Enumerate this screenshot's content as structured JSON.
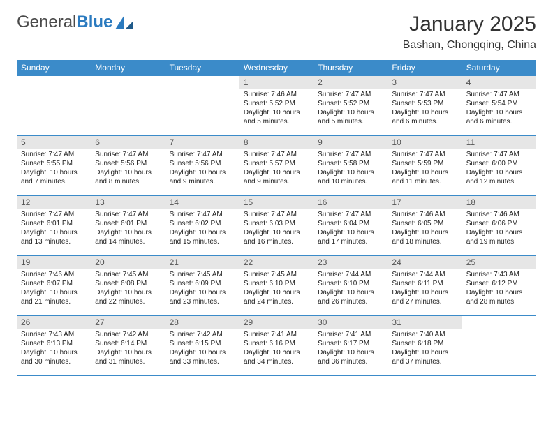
{
  "logo": {
    "text1": "General",
    "text2": "Blue"
  },
  "title": "January 2025",
  "location": "Bashan, Chongqing, China",
  "header_bg": "#3b8bc9",
  "daynum_bg": "#e6e6e6",
  "weekdays": [
    "Sunday",
    "Monday",
    "Tuesday",
    "Wednesday",
    "Thursday",
    "Friday",
    "Saturday"
  ],
  "weeks": [
    [
      {
        "empty": true
      },
      {
        "empty": true
      },
      {
        "empty": true
      },
      {
        "day": "1",
        "sunrise": "7:46 AM",
        "sunset": "5:52 PM",
        "daylight": "10 hours and 5 minutes."
      },
      {
        "day": "2",
        "sunrise": "7:47 AM",
        "sunset": "5:52 PM",
        "daylight": "10 hours and 5 minutes."
      },
      {
        "day": "3",
        "sunrise": "7:47 AM",
        "sunset": "5:53 PM",
        "daylight": "10 hours and 6 minutes."
      },
      {
        "day": "4",
        "sunrise": "7:47 AM",
        "sunset": "5:54 PM",
        "daylight": "10 hours and 6 minutes."
      }
    ],
    [
      {
        "day": "5",
        "sunrise": "7:47 AM",
        "sunset": "5:55 PM",
        "daylight": "10 hours and 7 minutes."
      },
      {
        "day": "6",
        "sunrise": "7:47 AM",
        "sunset": "5:56 PM",
        "daylight": "10 hours and 8 minutes."
      },
      {
        "day": "7",
        "sunrise": "7:47 AM",
        "sunset": "5:56 PM",
        "daylight": "10 hours and 9 minutes."
      },
      {
        "day": "8",
        "sunrise": "7:47 AM",
        "sunset": "5:57 PM",
        "daylight": "10 hours and 9 minutes."
      },
      {
        "day": "9",
        "sunrise": "7:47 AM",
        "sunset": "5:58 PM",
        "daylight": "10 hours and 10 minutes."
      },
      {
        "day": "10",
        "sunrise": "7:47 AM",
        "sunset": "5:59 PM",
        "daylight": "10 hours and 11 minutes."
      },
      {
        "day": "11",
        "sunrise": "7:47 AM",
        "sunset": "6:00 PM",
        "daylight": "10 hours and 12 minutes."
      }
    ],
    [
      {
        "day": "12",
        "sunrise": "7:47 AM",
        "sunset": "6:01 PM",
        "daylight": "10 hours and 13 minutes."
      },
      {
        "day": "13",
        "sunrise": "7:47 AM",
        "sunset": "6:01 PM",
        "daylight": "10 hours and 14 minutes."
      },
      {
        "day": "14",
        "sunrise": "7:47 AM",
        "sunset": "6:02 PM",
        "daylight": "10 hours and 15 minutes."
      },
      {
        "day": "15",
        "sunrise": "7:47 AM",
        "sunset": "6:03 PM",
        "daylight": "10 hours and 16 minutes."
      },
      {
        "day": "16",
        "sunrise": "7:47 AM",
        "sunset": "6:04 PM",
        "daylight": "10 hours and 17 minutes."
      },
      {
        "day": "17",
        "sunrise": "7:46 AM",
        "sunset": "6:05 PM",
        "daylight": "10 hours and 18 minutes."
      },
      {
        "day": "18",
        "sunrise": "7:46 AM",
        "sunset": "6:06 PM",
        "daylight": "10 hours and 19 minutes."
      }
    ],
    [
      {
        "day": "19",
        "sunrise": "7:46 AM",
        "sunset": "6:07 PM",
        "daylight": "10 hours and 21 minutes."
      },
      {
        "day": "20",
        "sunrise": "7:45 AM",
        "sunset": "6:08 PM",
        "daylight": "10 hours and 22 minutes."
      },
      {
        "day": "21",
        "sunrise": "7:45 AM",
        "sunset": "6:09 PM",
        "daylight": "10 hours and 23 minutes."
      },
      {
        "day": "22",
        "sunrise": "7:45 AM",
        "sunset": "6:10 PM",
        "daylight": "10 hours and 24 minutes."
      },
      {
        "day": "23",
        "sunrise": "7:44 AM",
        "sunset": "6:10 PM",
        "daylight": "10 hours and 26 minutes."
      },
      {
        "day": "24",
        "sunrise": "7:44 AM",
        "sunset": "6:11 PM",
        "daylight": "10 hours and 27 minutes."
      },
      {
        "day": "25",
        "sunrise": "7:43 AM",
        "sunset": "6:12 PM",
        "daylight": "10 hours and 28 minutes."
      }
    ],
    [
      {
        "day": "26",
        "sunrise": "7:43 AM",
        "sunset": "6:13 PM",
        "daylight": "10 hours and 30 minutes."
      },
      {
        "day": "27",
        "sunrise": "7:42 AM",
        "sunset": "6:14 PM",
        "daylight": "10 hours and 31 minutes."
      },
      {
        "day": "28",
        "sunrise": "7:42 AM",
        "sunset": "6:15 PM",
        "daylight": "10 hours and 33 minutes."
      },
      {
        "day": "29",
        "sunrise": "7:41 AM",
        "sunset": "6:16 PM",
        "daylight": "10 hours and 34 minutes."
      },
      {
        "day": "30",
        "sunrise": "7:41 AM",
        "sunset": "6:17 PM",
        "daylight": "10 hours and 36 minutes."
      },
      {
        "day": "31",
        "sunrise": "7:40 AM",
        "sunset": "6:18 PM",
        "daylight": "10 hours and 37 minutes."
      },
      {
        "empty": true
      }
    ]
  ],
  "labels": {
    "sunrise": "Sunrise:",
    "sunset": "Sunset:",
    "daylight": "Daylight:"
  }
}
